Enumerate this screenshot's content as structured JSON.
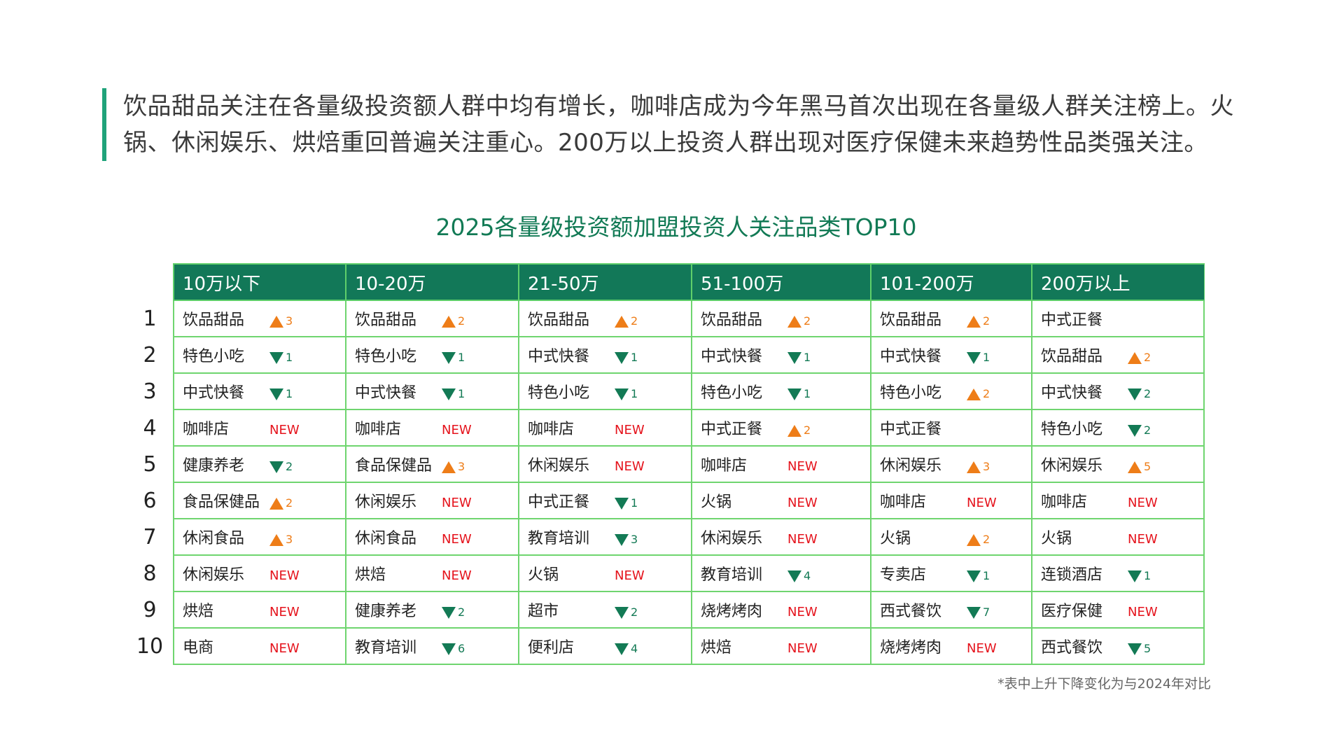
{
  "intro": {
    "line1": "饮品甜品关注在各量级投资额人群中均有增长，咖啡店成为今年黑马首次出现在各量级人群关注榜上。火",
    "line2": "锅、休闲娱乐、烘焙重回普遍关注重心。200万以上投资人群出现对医疗保健未来趋势性品类强关注。"
  },
  "table_title": "2025各量级投资额加盟投资人关注品类TOP10",
  "colors": {
    "header_bg": "#127858",
    "accent_green": "#127a55",
    "up_orange": "#ee7d18",
    "new_red": "#e5131c",
    "grid_green": "#6fd56f",
    "intro_bar": "#1fa37a"
  },
  "columns": [
    "10万以下",
    "10-20万",
    "21-50万",
    "51-100万",
    "101-200万",
    "200万以上"
  ],
  "ranks": [
    "1",
    "2",
    "3",
    "4",
    "5",
    "6",
    "7",
    "8",
    "9",
    "10"
  ],
  "rows": [
    [
      {
        "cat": "饮品甜品",
        "type": "up",
        "val": "3"
      },
      {
        "cat": "饮品甜品",
        "type": "up",
        "val": "2"
      },
      {
        "cat": "饮品甜品",
        "type": "up",
        "val": "2"
      },
      {
        "cat": "饮品甜品",
        "type": "up",
        "val": "2"
      },
      {
        "cat": "饮品甜品",
        "type": "up",
        "val": "2"
      },
      {
        "cat": "中式正餐",
        "type": "none",
        "val": ""
      }
    ],
    [
      {
        "cat": "特色小吃",
        "type": "down",
        "val": "1"
      },
      {
        "cat": "特色小吃",
        "type": "down",
        "val": "1"
      },
      {
        "cat": "中式快餐",
        "type": "down",
        "val": "1"
      },
      {
        "cat": "中式快餐",
        "type": "down",
        "val": "1"
      },
      {
        "cat": "中式快餐",
        "type": "down",
        "val": "1"
      },
      {
        "cat": "饮品甜品",
        "type": "up",
        "val": "2"
      }
    ],
    [
      {
        "cat": "中式快餐",
        "type": "down",
        "val": "1"
      },
      {
        "cat": "中式快餐",
        "type": "down",
        "val": "1"
      },
      {
        "cat": "特色小吃",
        "type": "down",
        "val": "1"
      },
      {
        "cat": "特色小吃",
        "type": "down",
        "val": "1"
      },
      {
        "cat": "特色小吃",
        "type": "up",
        "val": "2"
      },
      {
        "cat": "中式快餐",
        "type": "down",
        "val": "2"
      }
    ],
    [
      {
        "cat": "咖啡店",
        "type": "new",
        "val": "NEW"
      },
      {
        "cat": "咖啡店",
        "type": "new",
        "val": "NEW"
      },
      {
        "cat": "咖啡店",
        "type": "new",
        "val": "NEW"
      },
      {
        "cat": "中式正餐",
        "type": "up",
        "val": "2"
      },
      {
        "cat": "中式正餐",
        "type": "none",
        "val": ""
      },
      {
        "cat": "特色小吃",
        "type": "down",
        "val": "2"
      }
    ],
    [
      {
        "cat": "健康养老",
        "type": "down",
        "val": "2"
      },
      {
        "cat": "食品保健品",
        "type": "up",
        "val": "3"
      },
      {
        "cat": "休闲娱乐",
        "type": "new",
        "val": "NEW"
      },
      {
        "cat": "咖啡店",
        "type": "new",
        "val": "NEW"
      },
      {
        "cat": "休闲娱乐",
        "type": "up",
        "val": "3"
      },
      {
        "cat": "休闲娱乐",
        "type": "up",
        "val": "5"
      }
    ],
    [
      {
        "cat": "食品保健品",
        "type": "up",
        "val": "2"
      },
      {
        "cat": "休闲娱乐",
        "type": "new",
        "val": "NEW"
      },
      {
        "cat": "中式正餐",
        "type": "down",
        "val": "1"
      },
      {
        "cat": "火锅",
        "type": "new",
        "val": "NEW"
      },
      {
        "cat": "咖啡店",
        "type": "new",
        "val": "NEW"
      },
      {
        "cat": "咖啡店",
        "type": "new",
        "val": "NEW"
      }
    ],
    [
      {
        "cat": "休闲食品",
        "type": "up",
        "val": "3"
      },
      {
        "cat": "休闲食品",
        "type": "new",
        "val": "NEW"
      },
      {
        "cat": "教育培训",
        "type": "down",
        "val": "3"
      },
      {
        "cat": "休闲娱乐",
        "type": "new",
        "val": "NEW"
      },
      {
        "cat": "火锅",
        "type": "up",
        "val": "2"
      },
      {
        "cat": "火锅",
        "type": "new",
        "val": "NEW"
      }
    ],
    [
      {
        "cat": "休闲娱乐",
        "type": "new",
        "val": "NEW"
      },
      {
        "cat": "烘焙",
        "type": "new",
        "val": "NEW"
      },
      {
        "cat": "火锅",
        "type": "new",
        "val": "NEW"
      },
      {
        "cat": "教育培训",
        "type": "down",
        "val": "4"
      },
      {
        "cat": "专卖店",
        "type": "down",
        "val": "1"
      },
      {
        "cat": "连锁酒店",
        "type": "down",
        "val": "1"
      }
    ],
    [
      {
        "cat": "烘焙",
        "type": "new",
        "val": "NEW"
      },
      {
        "cat": "健康养老",
        "type": "down",
        "val": "2"
      },
      {
        "cat": "超市",
        "type": "down",
        "val": "2"
      },
      {
        "cat": "烧烤烤肉",
        "type": "new",
        "val": "NEW"
      },
      {
        "cat": "西式餐饮",
        "type": "down",
        "val": "7"
      },
      {
        "cat": "医疗保健",
        "type": "new",
        "val": "NEW"
      }
    ],
    [
      {
        "cat": "电商",
        "type": "new",
        "val": "NEW"
      },
      {
        "cat": "教育培训",
        "type": "down",
        "val": "6"
      },
      {
        "cat": "便利店",
        "type": "down",
        "val": "4"
      },
      {
        "cat": "烘焙",
        "type": "new",
        "val": "NEW"
      },
      {
        "cat": "烧烤烤肉",
        "type": "new",
        "val": "NEW"
      },
      {
        "cat": "西式餐饮",
        "type": "down",
        "val": "5"
      }
    ]
  ],
  "footnote": "*表中上升下降变化为与2024年对比"
}
